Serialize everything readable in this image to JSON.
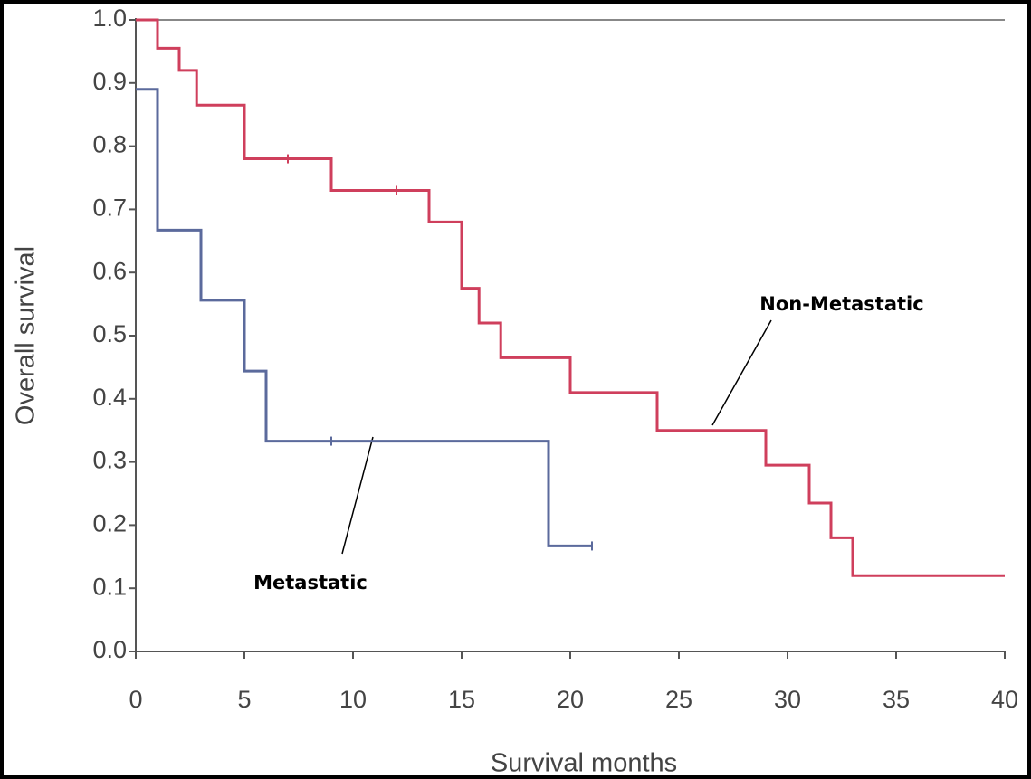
{
  "chart_data": {
    "type": "step-line",
    "xlabel": "Survival months",
    "ylabel": "Overall survival",
    "xlim": [
      0,
      40
    ],
    "xticks": [
      0,
      5,
      10,
      15,
      20,
      25,
      30,
      35,
      40
    ],
    "ylim": [
      0,
      1
    ],
    "yticks": [
      {
        "value": 0,
        "label": "0.0"
      },
      0.1,
      0.2,
      0.3,
      0.4,
      0.5,
      0.6,
      0.7,
      0.8,
      0.9,
      {
        "value": 1,
        "label": "1.0"
      }
    ],
    "series": [
      {
        "name": "Non-Metastatic",
        "color": "#cf3f5c",
        "x": [
          0,
          1,
          1,
          2,
          2,
          2.8,
          2.8,
          5,
          5,
          9,
          9,
          13.5,
          13.5,
          15,
          15,
          15.8,
          15.8,
          16.8,
          16.8,
          20,
          20,
          24,
          24,
          29,
          29,
          31,
          31,
          32,
          32,
          33,
          33,
          40
        ],
        "values": [
          1,
          1,
          0.955,
          0.955,
          0.92,
          0.92,
          0.865,
          0.865,
          0.78,
          0.78,
          0.73,
          0.73,
          0.68,
          0.68,
          0.575,
          0.575,
          0.52,
          0.52,
          0.465,
          0.465,
          0.41,
          0.41,
          0.35,
          0.35,
          0.295,
          0.295,
          0.235,
          0.235,
          0.18,
          0.18,
          0.12,
          0.12
        ],
        "censor_x": [
          7,
          12
        ],
        "censor_values": [
          0.78,
          0.73
        ]
      },
      {
        "name": "Metastatic",
        "color": "#5b6a9c",
        "x": [
          0,
          1,
          1,
          3,
          3,
          5,
          5,
          6,
          6,
          19,
          19,
          21
        ],
        "values": [
          0.89,
          0.89,
          0.667,
          0.667,
          0.556,
          0.556,
          0.444,
          0.444,
          0.333,
          0.333,
          0.167,
          0.167
        ],
        "censor_x": [
          9,
          21
        ],
        "censor_values": [
          0.333,
          0.167
        ]
      }
    ]
  }
}
